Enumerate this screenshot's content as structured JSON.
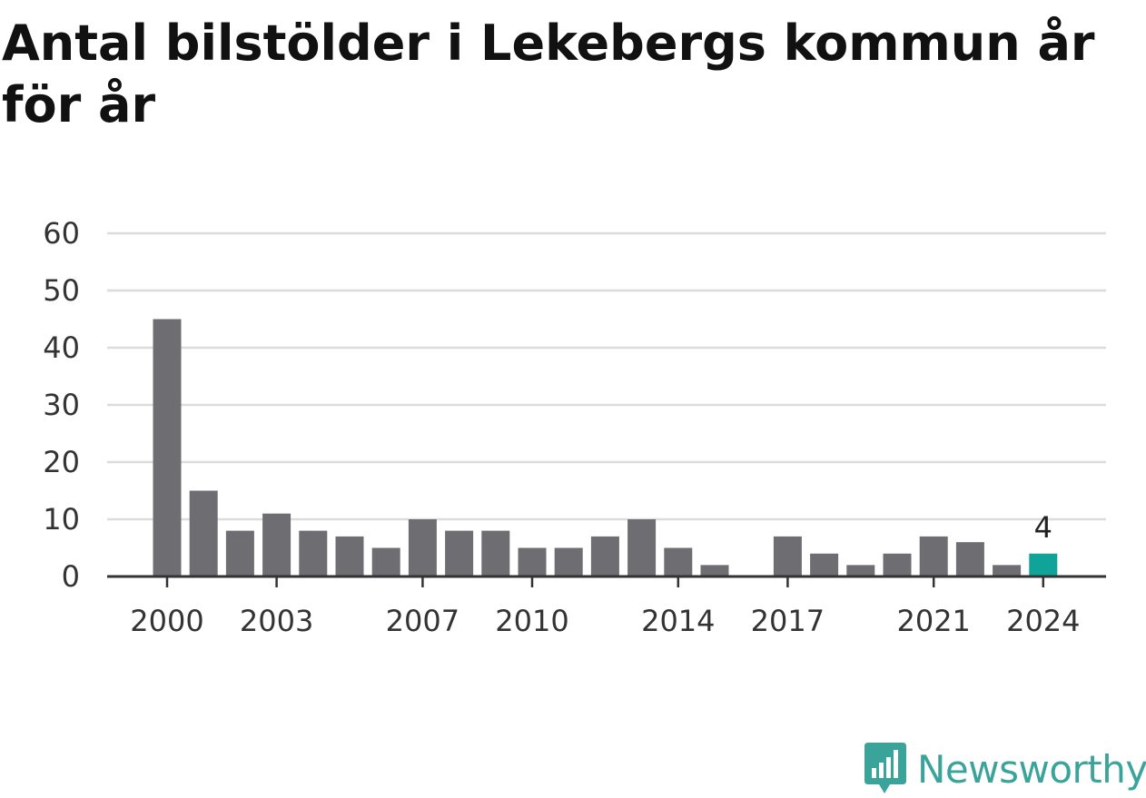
{
  "title": "Antal bilstölder i Lekebergs kommun år för år",
  "brand": {
    "name": "Newsworthy",
    "icon": "newsworthy-logo-icon",
    "color": "#3aa39a"
  },
  "colors": {
    "bar": "#6e6d72",
    "highlight": "#10a39a",
    "grid": "#dcdcdc",
    "axis": "#333333",
    "text": "#333333"
  },
  "chart_data": {
    "type": "bar",
    "title": "Antal bilstölder i Lekebergs kommun år för år",
    "xlabel": "",
    "ylabel": "",
    "categories": [
      "2000",
      "2001",
      "2002",
      "2003",
      "2004",
      "2005",
      "2006",
      "2007",
      "2008",
      "2009",
      "2010",
      "2011",
      "2012",
      "2013",
      "2014",
      "2015",
      "2016",
      "2017",
      "2018",
      "2019",
      "2020",
      "2021",
      "2022",
      "2023",
      "2024"
    ],
    "values": [
      45,
      15,
      8,
      11,
      8,
      7,
      5,
      10,
      8,
      8,
      5,
      5,
      7,
      10,
      5,
      2,
      0,
      7,
      4,
      2,
      4,
      7,
      6,
      2,
      4
    ],
    "ylim": [
      0,
      60
    ],
    "yticks": [
      "0",
      "10",
      "20",
      "30",
      "40",
      "50",
      "60"
    ],
    "xticks": [
      "2000",
      "2003",
      "2007",
      "2010",
      "2014",
      "2017",
      "2021",
      "2024"
    ],
    "grid": true,
    "highlight": {
      "category": "2024",
      "label": "4"
    }
  }
}
